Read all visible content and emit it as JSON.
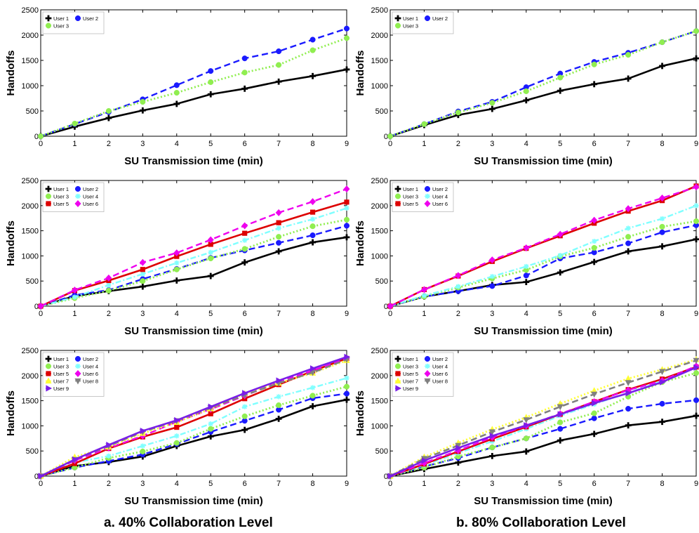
{
  "figure": {
    "caption_left": "a. 40% Collaboration Level",
    "caption_right": "b. 80% Collaboration Level"
  },
  "styles": {
    "User 1": {
      "color": "#000000",
      "marker": "plus",
      "dash": "",
      "width": 2.6
    },
    "User 2": {
      "color": "#1a1aff",
      "marker": "circle",
      "dash": "9,5",
      "width": 2.4
    },
    "User 3": {
      "color": "#90ee50",
      "marker": "circle",
      "dash": "2,3",
      "width": 2.8
    },
    "User 4": {
      "color": "#80ffff",
      "marker": "star",
      "dash": "8,3,2,3",
      "width": 2.4
    },
    "User 5": {
      "color": "#dd0000",
      "marker": "square",
      "dash": "",
      "width": 2.6
    },
    "User 6": {
      "color": "#ee00ee",
      "marker": "diamond",
      "dash": "9,5",
      "width": 2.4
    },
    "User 7": {
      "color": "#ffff33",
      "marker": "triangle-up",
      "dash": "2,3",
      "width": 2.8
    },
    "User 8": {
      "color": "#808080",
      "marker": "triangle-down",
      "dash": "9,5",
      "width": 2.6
    },
    "User 9": {
      "color": "#7a1ee8",
      "marker": "triangle-right",
      "dash": "",
      "width": 2.6
    }
  },
  "chart_data": [
    {
      "type": "line",
      "panel": "a-top",
      "xlabel": "SU Transmission time (min)",
      "ylabel": "Handoffs",
      "x": [
        0,
        1,
        2,
        3,
        4,
        5,
        6,
        7,
        8,
        9
      ],
      "xlim": [
        0,
        9
      ],
      "ylim": [
        0,
        2500
      ],
      "xticks": [
        "0",
        "1",
        "2",
        "3",
        "4",
        "5",
        "6",
        "7",
        "8",
        "9"
      ],
      "yticks": [
        "0",
        "500",
        "1000",
        "1500",
        "2000",
        "2500"
      ],
      "legend": "top-left",
      "legend_columns": 2,
      "series": [
        {
          "name": "User 1",
          "values": [
            0,
            190,
            360,
            510,
            640,
            830,
            940,
            1080,
            1190,
            1320
          ]
        },
        {
          "name": "User 2",
          "values": [
            0,
            240,
            480,
            730,
            1010,
            1290,
            1540,
            1680,
            1910,
            2130
          ]
        },
        {
          "name": "User 3",
          "values": [
            0,
            250,
            500,
            680,
            860,
            1070,
            1260,
            1410,
            1700,
            1940
          ]
        }
      ]
    },
    {
      "type": "line",
      "panel": "b-top",
      "xlabel": "SU Transmission time (min)",
      "ylabel": "Handoffs",
      "x": [
        0,
        1,
        2,
        3,
        4,
        5,
        6,
        7,
        8,
        9
      ],
      "xlim": [
        0,
        9
      ],
      "ylim": [
        0,
        2500
      ],
      "xticks": [
        "0",
        "1",
        "2",
        "3",
        "4",
        "5",
        "6",
        "7",
        "8",
        "9"
      ],
      "yticks": [
        "0",
        "500",
        "1000",
        "1500",
        "2000",
        "2500"
      ],
      "legend": "top-left",
      "legend_columns": 2,
      "series": [
        {
          "name": "User 1",
          "values": [
            0,
            220,
            420,
            540,
            710,
            900,
            1030,
            1140,
            1390,
            1540
          ]
        },
        {
          "name": "User 2",
          "values": [
            0,
            240,
            490,
            680,
            970,
            1240,
            1470,
            1650,
            1860,
            2080
          ]
        },
        {
          "name": "User 3",
          "values": [
            0,
            240,
            470,
            660,
            890,
            1160,
            1420,
            1610,
            1860,
            2080
          ]
        }
      ]
    },
    {
      "type": "line",
      "panel": "a-middle",
      "xlabel": "SU Transmission time (min)",
      "ylabel": "Handoffs",
      "x": [
        0,
        1,
        2,
        3,
        4,
        5,
        6,
        7,
        8,
        9
      ],
      "xlim": [
        0,
        9
      ],
      "ylim": [
        0,
        2500
      ],
      "xticks": [
        "0",
        "1",
        "2",
        "3",
        "4",
        "5",
        "6",
        "7",
        "8",
        "9"
      ],
      "yticks": [
        "0",
        "500",
        "1000",
        "1500",
        "2000",
        "2500"
      ],
      "legend": "top-left",
      "legend_columns": 2,
      "series": [
        {
          "name": "User 1",
          "values": [
            0,
            200,
            300,
            390,
            510,
            600,
            870,
            1090,
            1270,
            1370
          ]
        },
        {
          "name": "User 2",
          "values": [
            0,
            220,
            320,
            540,
            740,
            960,
            1110,
            1260,
            1410,
            1600
          ]
        },
        {
          "name": "User 3",
          "values": [
            0,
            160,
            310,
            500,
            730,
            950,
            1140,
            1380,
            1590,
            1720
          ]
        },
        {
          "name": "User 4",
          "values": [
            0,
            180,
            420,
            640,
            860,
            1070,
            1310,
            1550,
            1730,
            1950
          ]
        },
        {
          "name": "User 5",
          "values": [
            0,
            310,
            510,
            730,
            990,
            1230,
            1450,
            1660,
            1870,
            2070
          ]
        },
        {
          "name": "User 6",
          "values": [
            0,
            320,
            560,
            870,
            1060,
            1320,
            1600,
            1860,
            2080,
            2330
          ]
        }
      ]
    },
    {
      "type": "line",
      "panel": "b-middle",
      "xlabel": "SU Transmission time (min)",
      "ylabel": "Handoffs",
      "x": [
        0,
        1,
        2,
        3,
        4,
        5,
        6,
        7,
        8,
        9
      ],
      "xlim": [
        0,
        9
      ],
      "ylim": [
        0,
        2500
      ],
      "xticks": [
        "0",
        "1",
        "2",
        "3",
        "4",
        "5",
        "6",
        "7",
        "8",
        "9"
      ],
      "yticks": [
        "0",
        "500",
        "1000",
        "1500",
        "2000",
        "2500"
      ],
      "legend": "top-left",
      "legend_columns": 2,
      "series": [
        {
          "name": "User 1",
          "values": [
            0,
            190,
            300,
            420,
            480,
            670,
            880,
            1090,
            1190,
            1330
          ]
        },
        {
          "name": "User 2",
          "values": [
            0,
            190,
            300,
            400,
            610,
            950,
            1070,
            1250,
            1470,
            1610
          ]
        },
        {
          "name": "User 3",
          "values": [
            0,
            190,
            370,
            550,
            720,
            990,
            1160,
            1380,
            1580,
            1690
          ]
        },
        {
          "name": "User 4",
          "values": [
            0,
            210,
            390,
            590,
            790,
            1010,
            1290,
            1550,
            1740,
            2000
          ]
        },
        {
          "name": "User 5",
          "values": [
            0,
            330,
            600,
            890,
            1150,
            1400,
            1650,
            1890,
            2100,
            2390
          ]
        },
        {
          "name": "User 6",
          "values": [
            0,
            330,
            610,
            920,
            1160,
            1430,
            1710,
            1940,
            2150,
            2370
          ]
        }
      ]
    },
    {
      "type": "line",
      "panel": "a-bottom",
      "xlabel": "SU Transmission time (min)",
      "ylabel": "Handoffs",
      "x": [
        0,
        1,
        2,
        3,
        4,
        5,
        6,
        7,
        8,
        9
      ],
      "xlim": [
        0,
        9
      ],
      "ylim": [
        0,
        2500
      ],
      "xticks": [
        "0",
        "1",
        "2",
        "3",
        "4",
        "5",
        "6",
        "7",
        "8",
        "9"
      ],
      "yticks": [
        "0",
        "500",
        "1000",
        "1500",
        "2000",
        "2500"
      ],
      "legend": "top-left",
      "legend_columns": 2,
      "series": [
        {
          "name": "User 1",
          "values": [
            0,
            200,
            280,
            390,
            600,
            790,
            920,
            1140,
            1390,
            1520
          ]
        },
        {
          "name": "User 2",
          "values": [
            0,
            170,
            300,
            430,
            640,
            880,
            1100,
            1320,
            1550,
            1640
          ]
        },
        {
          "name": "User 3",
          "values": [
            0,
            170,
            360,
            490,
            660,
            940,
            1190,
            1410,
            1600,
            1780
          ]
        },
        {
          "name": "User 4",
          "values": [
            0,
            270,
            400,
            600,
            800,
            1040,
            1380,
            1580,
            1760,
            1950
          ]
        },
        {
          "name": "User 5",
          "values": [
            0,
            250,
            550,
            780,
            970,
            1240,
            1540,
            1820,
            2090,
            2340
          ]
        },
        {
          "name": "User 6",
          "values": [
            0,
            310,
            560,
            800,
            1080,
            1330,
            1600,
            1870,
            2100,
            2340
          ]
        },
        {
          "name": "User 7",
          "values": [
            0,
            380,
            580,
            850,
            1070,
            1340,
            1640,
            1850,
            2050,
            2300
          ]
        },
        {
          "name": "User 8",
          "values": [
            0,
            330,
            600,
            880,
            1100,
            1360,
            1610,
            1850,
            2060,
            2320
          ]
        },
        {
          "name": "User 9",
          "values": [
            0,
            330,
            620,
            900,
            1110,
            1380,
            1650,
            1900,
            2140,
            2370
          ]
        }
      ]
    },
    {
      "type": "line",
      "panel": "b-bottom",
      "xlabel": "SU Transmission time (min)",
      "ylabel": "Handoffs",
      "x": [
        0,
        1,
        2,
        3,
        4,
        5,
        6,
        7,
        8,
        9
      ],
      "xlim": [
        0,
        9
      ],
      "ylim": [
        0,
        2500
      ],
      "xticks": [
        "0",
        "1",
        "2",
        "3",
        "4",
        "5",
        "6",
        "7",
        "8",
        "9"
      ],
      "yticks": [
        "0",
        "500",
        "1000",
        "1500",
        "2000",
        "2500"
      ],
      "legend": "top-left",
      "legend_columns": 2,
      "series": [
        {
          "name": "User 1",
          "values": [
            0,
            140,
            270,
            400,
            490,
            710,
            840,
            1010,
            1080,
            1200
          ]
        },
        {
          "name": "User 2",
          "values": [
            0,
            190,
            360,
            570,
            750,
            940,
            1150,
            1340,
            1440,
            1510
          ]
        },
        {
          "name": "User 3",
          "values": [
            0,
            170,
            390,
            570,
            750,
            1070,
            1250,
            1580,
            1870,
            2050
          ]
        },
        {
          "name": "User 4",
          "values": [
            0,
            220,
            460,
            690,
            940,
            1200,
            1430,
            1660,
            1890,
            2170
          ]
        },
        {
          "name": "User 5",
          "values": [
            0,
            240,
            490,
            740,
            980,
            1230,
            1480,
            1720,
            1930,
            2170
          ]
        },
        {
          "name": "User 6",
          "values": [
            0,
            260,
            510,
            770,
            1000,
            1240,
            1480,
            1710,
            1900,
            2190
          ]
        },
        {
          "name": "User 7",
          "values": [
            0,
            380,
            660,
            930,
            1170,
            1440,
            1700,
            1940,
            2120,
            2320
          ]
        },
        {
          "name": "User 8",
          "values": [
            0,
            350,
            610,
            880,
            1120,
            1380,
            1630,
            1860,
            2080,
            2300
          ]
        },
        {
          "name": "User 9",
          "values": [
            0,
            310,
            560,
            800,
            1010,
            1230,
            1450,
            1650,
            1870,
            2160
          ]
        }
      ]
    }
  ]
}
